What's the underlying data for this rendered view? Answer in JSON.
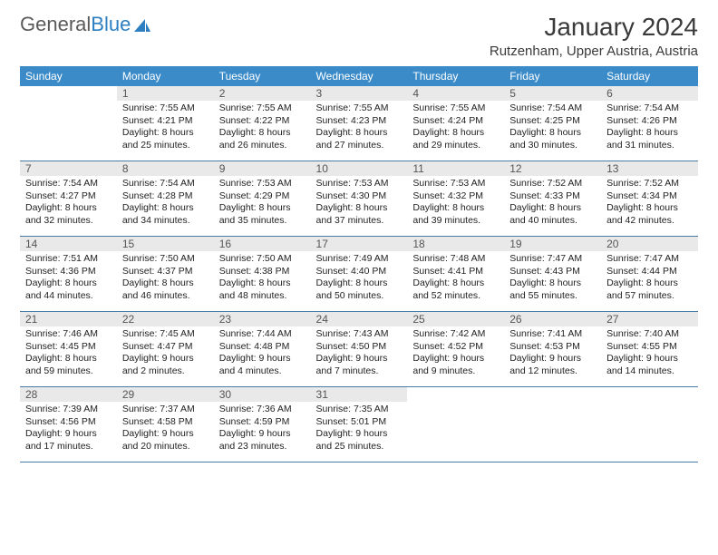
{
  "brand": {
    "part1": "General",
    "part2": "Blue"
  },
  "title": "January 2024",
  "location": "Rutzenham, Upper Austria, Austria",
  "headers": [
    "Sunday",
    "Monday",
    "Tuesday",
    "Wednesday",
    "Thursday",
    "Friday",
    "Saturday"
  ],
  "colors": {
    "header_bg": "#3b8bc9",
    "header_fg": "#ffffff",
    "daynum_bg": "#e9e9e9",
    "row_border": "#4a7aa6",
    "brand_gray": "#5a5a5a",
    "brand_blue": "#2d7fc1"
  },
  "weeks": [
    [
      {
        "n": "",
        "sunrise": "",
        "sunset": "",
        "daylight": ""
      },
      {
        "n": "1",
        "sunrise": "Sunrise: 7:55 AM",
        "sunset": "Sunset: 4:21 PM",
        "daylight": "Daylight: 8 hours and 25 minutes."
      },
      {
        "n": "2",
        "sunrise": "Sunrise: 7:55 AM",
        "sunset": "Sunset: 4:22 PM",
        "daylight": "Daylight: 8 hours and 26 minutes."
      },
      {
        "n": "3",
        "sunrise": "Sunrise: 7:55 AM",
        "sunset": "Sunset: 4:23 PM",
        "daylight": "Daylight: 8 hours and 27 minutes."
      },
      {
        "n": "4",
        "sunrise": "Sunrise: 7:55 AM",
        "sunset": "Sunset: 4:24 PM",
        "daylight": "Daylight: 8 hours and 29 minutes."
      },
      {
        "n": "5",
        "sunrise": "Sunrise: 7:54 AM",
        "sunset": "Sunset: 4:25 PM",
        "daylight": "Daylight: 8 hours and 30 minutes."
      },
      {
        "n": "6",
        "sunrise": "Sunrise: 7:54 AM",
        "sunset": "Sunset: 4:26 PM",
        "daylight": "Daylight: 8 hours and 31 minutes."
      }
    ],
    [
      {
        "n": "7",
        "sunrise": "Sunrise: 7:54 AM",
        "sunset": "Sunset: 4:27 PM",
        "daylight": "Daylight: 8 hours and 32 minutes."
      },
      {
        "n": "8",
        "sunrise": "Sunrise: 7:54 AM",
        "sunset": "Sunset: 4:28 PM",
        "daylight": "Daylight: 8 hours and 34 minutes."
      },
      {
        "n": "9",
        "sunrise": "Sunrise: 7:53 AM",
        "sunset": "Sunset: 4:29 PM",
        "daylight": "Daylight: 8 hours and 35 minutes."
      },
      {
        "n": "10",
        "sunrise": "Sunrise: 7:53 AM",
        "sunset": "Sunset: 4:30 PM",
        "daylight": "Daylight: 8 hours and 37 minutes."
      },
      {
        "n": "11",
        "sunrise": "Sunrise: 7:53 AM",
        "sunset": "Sunset: 4:32 PM",
        "daylight": "Daylight: 8 hours and 39 minutes."
      },
      {
        "n": "12",
        "sunrise": "Sunrise: 7:52 AM",
        "sunset": "Sunset: 4:33 PM",
        "daylight": "Daylight: 8 hours and 40 minutes."
      },
      {
        "n": "13",
        "sunrise": "Sunrise: 7:52 AM",
        "sunset": "Sunset: 4:34 PM",
        "daylight": "Daylight: 8 hours and 42 minutes."
      }
    ],
    [
      {
        "n": "14",
        "sunrise": "Sunrise: 7:51 AM",
        "sunset": "Sunset: 4:36 PM",
        "daylight": "Daylight: 8 hours and 44 minutes."
      },
      {
        "n": "15",
        "sunrise": "Sunrise: 7:50 AM",
        "sunset": "Sunset: 4:37 PM",
        "daylight": "Daylight: 8 hours and 46 minutes."
      },
      {
        "n": "16",
        "sunrise": "Sunrise: 7:50 AM",
        "sunset": "Sunset: 4:38 PM",
        "daylight": "Daylight: 8 hours and 48 minutes."
      },
      {
        "n": "17",
        "sunrise": "Sunrise: 7:49 AM",
        "sunset": "Sunset: 4:40 PM",
        "daylight": "Daylight: 8 hours and 50 minutes."
      },
      {
        "n": "18",
        "sunrise": "Sunrise: 7:48 AM",
        "sunset": "Sunset: 4:41 PM",
        "daylight": "Daylight: 8 hours and 52 minutes."
      },
      {
        "n": "19",
        "sunrise": "Sunrise: 7:47 AM",
        "sunset": "Sunset: 4:43 PM",
        "daylight": "Daylight: 8 hours and 55 minutes."
      },
      {
        "n": "20",
        "sunrise": "Sunrise: 7:47 AM",
        "sunset": "Sunset: 4:44 PM",
        "daylight": "Daylight: 8 hours and 57 minutes."
      }
    ],
    [
      {
        "n": "21",
        "sunrise": "Sunrise: 7:46 AM",
        "sunset": "Sunset: 4:45 PM",
        "daylight": "Daylight: 8 hours and 59 minutes."
      },
      {
        "n": "22",
        "sunrise": "Sunrise: 7:45 AM",
        "sunset": "Sunset: 4:47 PM",
        "daylight": "Daylight: 9 hours and 2 minutes."
      },
      {
        "n": "23",
        "sunrise": "Sunrise: 7:44 AM",
        "sunset": "Sunset: 4:48 PM",
        "daylight": "Daylight: 9 hours and 4 minutes."
      },
      {
        "n": "24",
        "sunrise": "Sunrise: 7:43 AM",
        "sunset": "Sunset: 4:50 PM",
        "daylight": "Daylight: 9 hours and 7 minutes."
      },
      {
        "n": "25",
        "sunrise": "Sunrise: 7:42 AM",
        "sunset": "Sunset: 4:52 PM",
        "daylight": "Daylight: 9 hours and 9 minutes."
      },
      {
        "n": "26",
        "sunrise": "Sunrise: 7:41 AM",
        "sunset": "Sunset: 4:53 PM",
        "daylight": "Daylight: 9 hours and 12 minutes."
      },
      {
        "n": "27",
        "sunrise": "Sunrise: 7:40 AM",
        "sunset": "Sunset: 4:55 PM",
        "daylight": "Daylight: 9 hours and 14 minutes."
      }
    ],
    [
      {
        "n": "28",
        "sunrise": "Sunrise: 7:39 AM",
        "sunset": "Sunset: 4:56 PM",
        "daylight": "Daylight: 9 hours and 17 minutes."
      },
      {
        "n": "29",
        "sunrise": "Sunrise: 7:37 AM",
        "sunset": "Sunset: 4:58 PM",
        "daylight": "Daylight: 9 hours and 20 minutes."
      },
      {
        "n": "30",
        "sunrise": "Sunrise: 7:36 AM",
        "sunset": "Sunset: 4:59 PM",
        "daylight": "Daylight: 9 hours and 23 minutes."
      },
      {
        "n": "31",
        "sunrise": "Sunrise: 7:35 AM",
        "sunset": "Sunset: 5:01 PM",
        "daylight": "Daylight: 9 hours and 25 minutes."
      },
      {
        "n": "",
        "sunrise": "",
        "sunset": "",
        "daylight": ""
      },
      {
        "n": "",
        "sunrise": "",
        "sunset": "",
        "daylight": ""
      },
      {
        "n": "",
        "sunrise": "",
        "sunset": "",
        "daylight": ""
      }
    ]
  ]
}
